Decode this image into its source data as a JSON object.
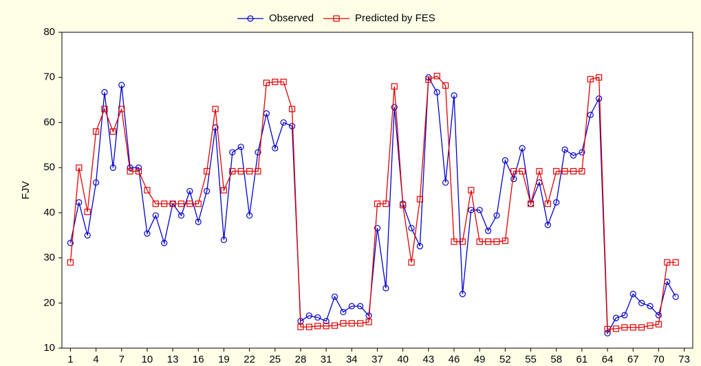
{
  "chart_data": {
    "type": "line",
    "y_label": "FJV",
    "x": [
      1,
      2,
      3,
      4,
      5,
      6,
      7,
      8,
      9,
      10,
      11,
      12,
      13,
      14,
      15,
      16,
      17,
      18,
      19,
      20,
      21,
      22,
      23,
      24,
      25,
      26,
      27,
      28,
      29,
      30,
      31,
      32,
      33,
      34,
      35,
      36,
      37,
      38,
      39,
      40,
      41,
      42,
      43,
      44,
      45,
      46,
      47,
      48,
      49,
      50,
      51,
      52,
      53,
      54,
      55,
      56,
      57,
      58,
      59,
      60,
      61,
      62,
      63,
      64,
      65,
      66,
      67,
      68,
      69,
      70,
      71,
      72
    ],
    "series": [
      {
        "name": "Observed",
        "color": "#0000cc",
        "marker": "circle",
        "values": [
          33.3,
          42.3,
          35,
          46.7,
          66.7,
          50,
          68.3,
          50,
          50,
          35.4,
          39.4,
          33.3,
          42,
          39.4,
          44.8,
          38,
          44.8,
          58.9,
          34,
          53.4,
          54.6,
          39.4,
          53.4,
          62,
          54.3,
          60,
          59.2,
          16,
          17.2,
          16.8,
          16,
          21.4,
          18,
          19.3,
          19.3,
          17.2,
          36.6,
          23.3,
          63.4,
          42,
          36.6,
          32.6,
          70,
          66.7,
          46.7,
          66,
          22,
          40.6,
          40.6,
          36,
          39.4,
          51.6,
          47.5,
          54.3,
          42,
          46.7,
          37.3,
          42.3,
          54,
          52.7,
          53.4,
          61.7,
          65.3,
          13.3,
          16.7,
          17.3,
          22,
          20,
          19.3,
          17.3,
          24.7,
          21.4
        ]
      },
      {
        "name": "Predicted by FES",
        "color": "#e00000",
        "marker": "square",
        "values": [
          29,
          50,
          40.2,
          58,
          63,
          58,
          63,
          49.2,
          49.2,
          45,
          42,
          42,
          42,
          42,
          42,
          42,
          49.2,
          63,
          45,
          49.2,
          49.2,
          49.2,
          49.2,
          68.8,
          69,
          69,
          63,
          14.7,
          14.7,
          14.9,
          14.9,
          15,
          15.5,
          15.5,
          15.5,
          15.8,
          42,
          42,
          68,
          41.7,
          29,
          43,
          69.5,
          70.3,
          68.2,
          33.6,
          33.6,
          45,
          33.6,
          33.6,
          33.6,
          33.8,
          49.2,
          49.2,
          42,
          49.2,
          42,
          49.2,
          49.2,
          49.2,
          49.2,
          69.6,
          70,
          14.2,
          14.3,
          14.6,
          14.6,
          14.6,
          15,
          15.3,
          29,
          29
        ]
      }
    ],
    "xlim": [
      0,
      74
    ],
    "xticks": [
      1,
      4,
      7,
      10,
      13,
      16,
      19,
      22,
      25,
      28,
      31,
      34,
      37,
      40,
      43,
      46,
      49,
      52,
      55,
      58,
      61,
      64,
      67,
      70,
      73
    ],
    "ylim": [
      10,
      80
    ],
    "yticks": [
      10,
      20,
      30,
      40,
      50,
      60,
      70,
      80
    ],
    "legend": "top"
  }
}
